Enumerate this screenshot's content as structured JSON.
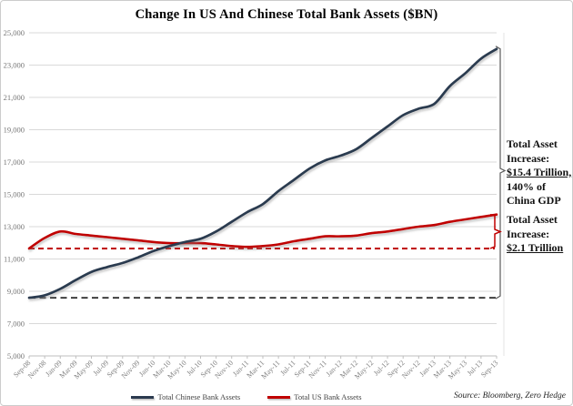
{
  "title": "Change In US And Chinese Total Bank Assets ($BN)",
  "source": "Source: Bloomberg, Zero Hedge",
  "colors": {
    "china_line": "#2b3a4f",
    "us_line": "#c00000",
    "grid": "#d9d9d9",
    "axis": "#bfbfbf",
    "tick_text": "#767676",
    "black_dashed": "#3f3f3f",
    "bracket_black": "#5a5a5a"
  },
  "annotations": {
    "china": {
      "l1": "Total Asset",
      "l2": "Increase:",
      "l3": "$15.4 Trillion,",
      "l4": "140% of",
      "l5": "China GDP"
    },
    "us": {
      "l1": "Total Asset",
      "l2": "Increase:",
      "l3": "$2.1 Trillion"
    }
  },
  "legend": {
    "china_label": "Total Chinese Bank Assets",
    "us_label": "Total US Bank Assets"
  },
  "chart_data": {
    "type": "line",
    "title": "Change In US And Chinese Total Bank Assets ($BN)",
    "xlabel": "",
    "ylabel": "",
    "ylim": [
      5000,
      25000
    ],
    "ytick_step": 2000,
    "grid": "horizontal",
    "legend_position": "bottom",
    "y_tick_labels": [
      "5,000",
      "7,000",
      "9,000",
      "11,000",
      "13,000",
      "15,000",
      "17,000",
      "19,000",
      "21,000",
      "23,000",
      "25,000"
    ],
    "x": [
      "Sep-08",
      "Nov-08",
      "Jan-09",
      "Mar-09",
      "May-09",
      "Jul-09",
      "Sep-09",
      "Nov-09",
      "Jan-10",
      "Mar-10",
      "May-10",
      "Jul-10",
      "Sep-10",
      "Nov-10",
      "Jan-11",
      "Mar-11",
      "May-11",
      "Jul-11",
      "Sep-11",
      "Nov-11",
      "Jan-12",
      "Mar-12",
      "May-12",
      "Jul-12",
      "Sep-12",
      "Nov-12",
      "Jan-13",
      "Mar-13",
      "May-13",
      "Jul-13",
      "Sep-13"
    ],
    "series": [
      {
        "name": "Total Chinese Bank Assets",
        "color": "#2b3a4f",
        "values": [
          8600,
          8750,
          9150,
          9700,
          10200,
          10500,
          10750,
          11100,
          11500,
          11800,
          12050,
          12250,
          12700,
          13300,
          13900,
          14400,
          15200,
          15900,
          16600,
          17100,
          17400,
          17800,
          18500,
          19200,
          19900,
          20300,
          20600,
          21700,
          22500,
          23400,
          24000
        ]
      },
      {
        "name": "Total US Bank Assets",
        "color": "#c00000",
        "values": [
          11650,
          12300,
          12700,
          12550,
          12450,
          12350,
          12250,
          12150,
          12050,
          11980,
          11980,
          11980,
          11900,
          11800,
          11750,
          11800,
          11900,
          12100,
          12250,
          12400,
          12400,
          12450,
          12600,
          12700,
          12850,
          13000,
          13100,
          13300,
          13450,
          13600,
          13750
        ]
      }
    ],
    "baselines": [
      {
        "name": "china-start-level",
        "value": 8600,
        "style": "dashed",
        "color": "#3f3f3f"
      },
      {
        "name": "us-start-level",
        "value": 11650,
        "style": "dashed",
        "color": "#c00000"
      }
    ],
    "annotations": [
      "Total Asset Increase: $15.4 Trillion, 140% of China GDP",
      "Total Asset Increase: $2.1 Trillion"
    ]
  }
}
